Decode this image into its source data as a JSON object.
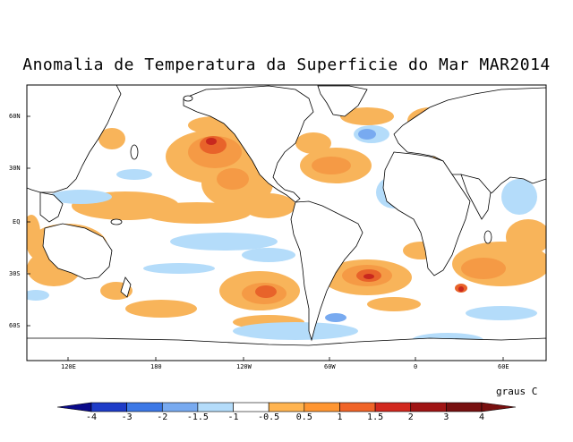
{
  "title": "Anomalia de Temperatura da Superficie do Mar MAR2014",
  "lat_labels": [
    "60N",
    "30N",
    "EQ",
    "30S",
    "60S"
  ],
  "lon_labels": [
    "120E",
    "180",
    "120W",
    "60W",
    "0",
    "60E"
  ],
  "units": "graus C",
  "colorbar": {
    "ticks": [
      "-4",
      "-3",
      "-2",
      "-1.5",
      "-1",
      "-0.5",
      "0.5",
      "1",
      "1.5",
      "2",
      "3",
      "4"
    ],
    "colors": [
      "#0a0a8a",
      "#1e3cc8",
      "#3c78e6",
      "#78aaf0",
      "#b4dcfa",
      "#ffffff",
      "#ffb450",
      "#ff9632",
      "#f06428",
      "#d2281e",
      "#a01414",
      "#781010"
    ]
  },
  "anomaly_colors": {
    "warm_light": "#f8b45a",
    "warm_mid": "#f59a45",
    "warm_strong": "#e8632a",
    "warm_max": "#c8281e",
    "cool_light": "#b4dcfa",
    "cool_mid": "#78aaf0",
    "cool_strong": "#3c78e6"
  }
}
